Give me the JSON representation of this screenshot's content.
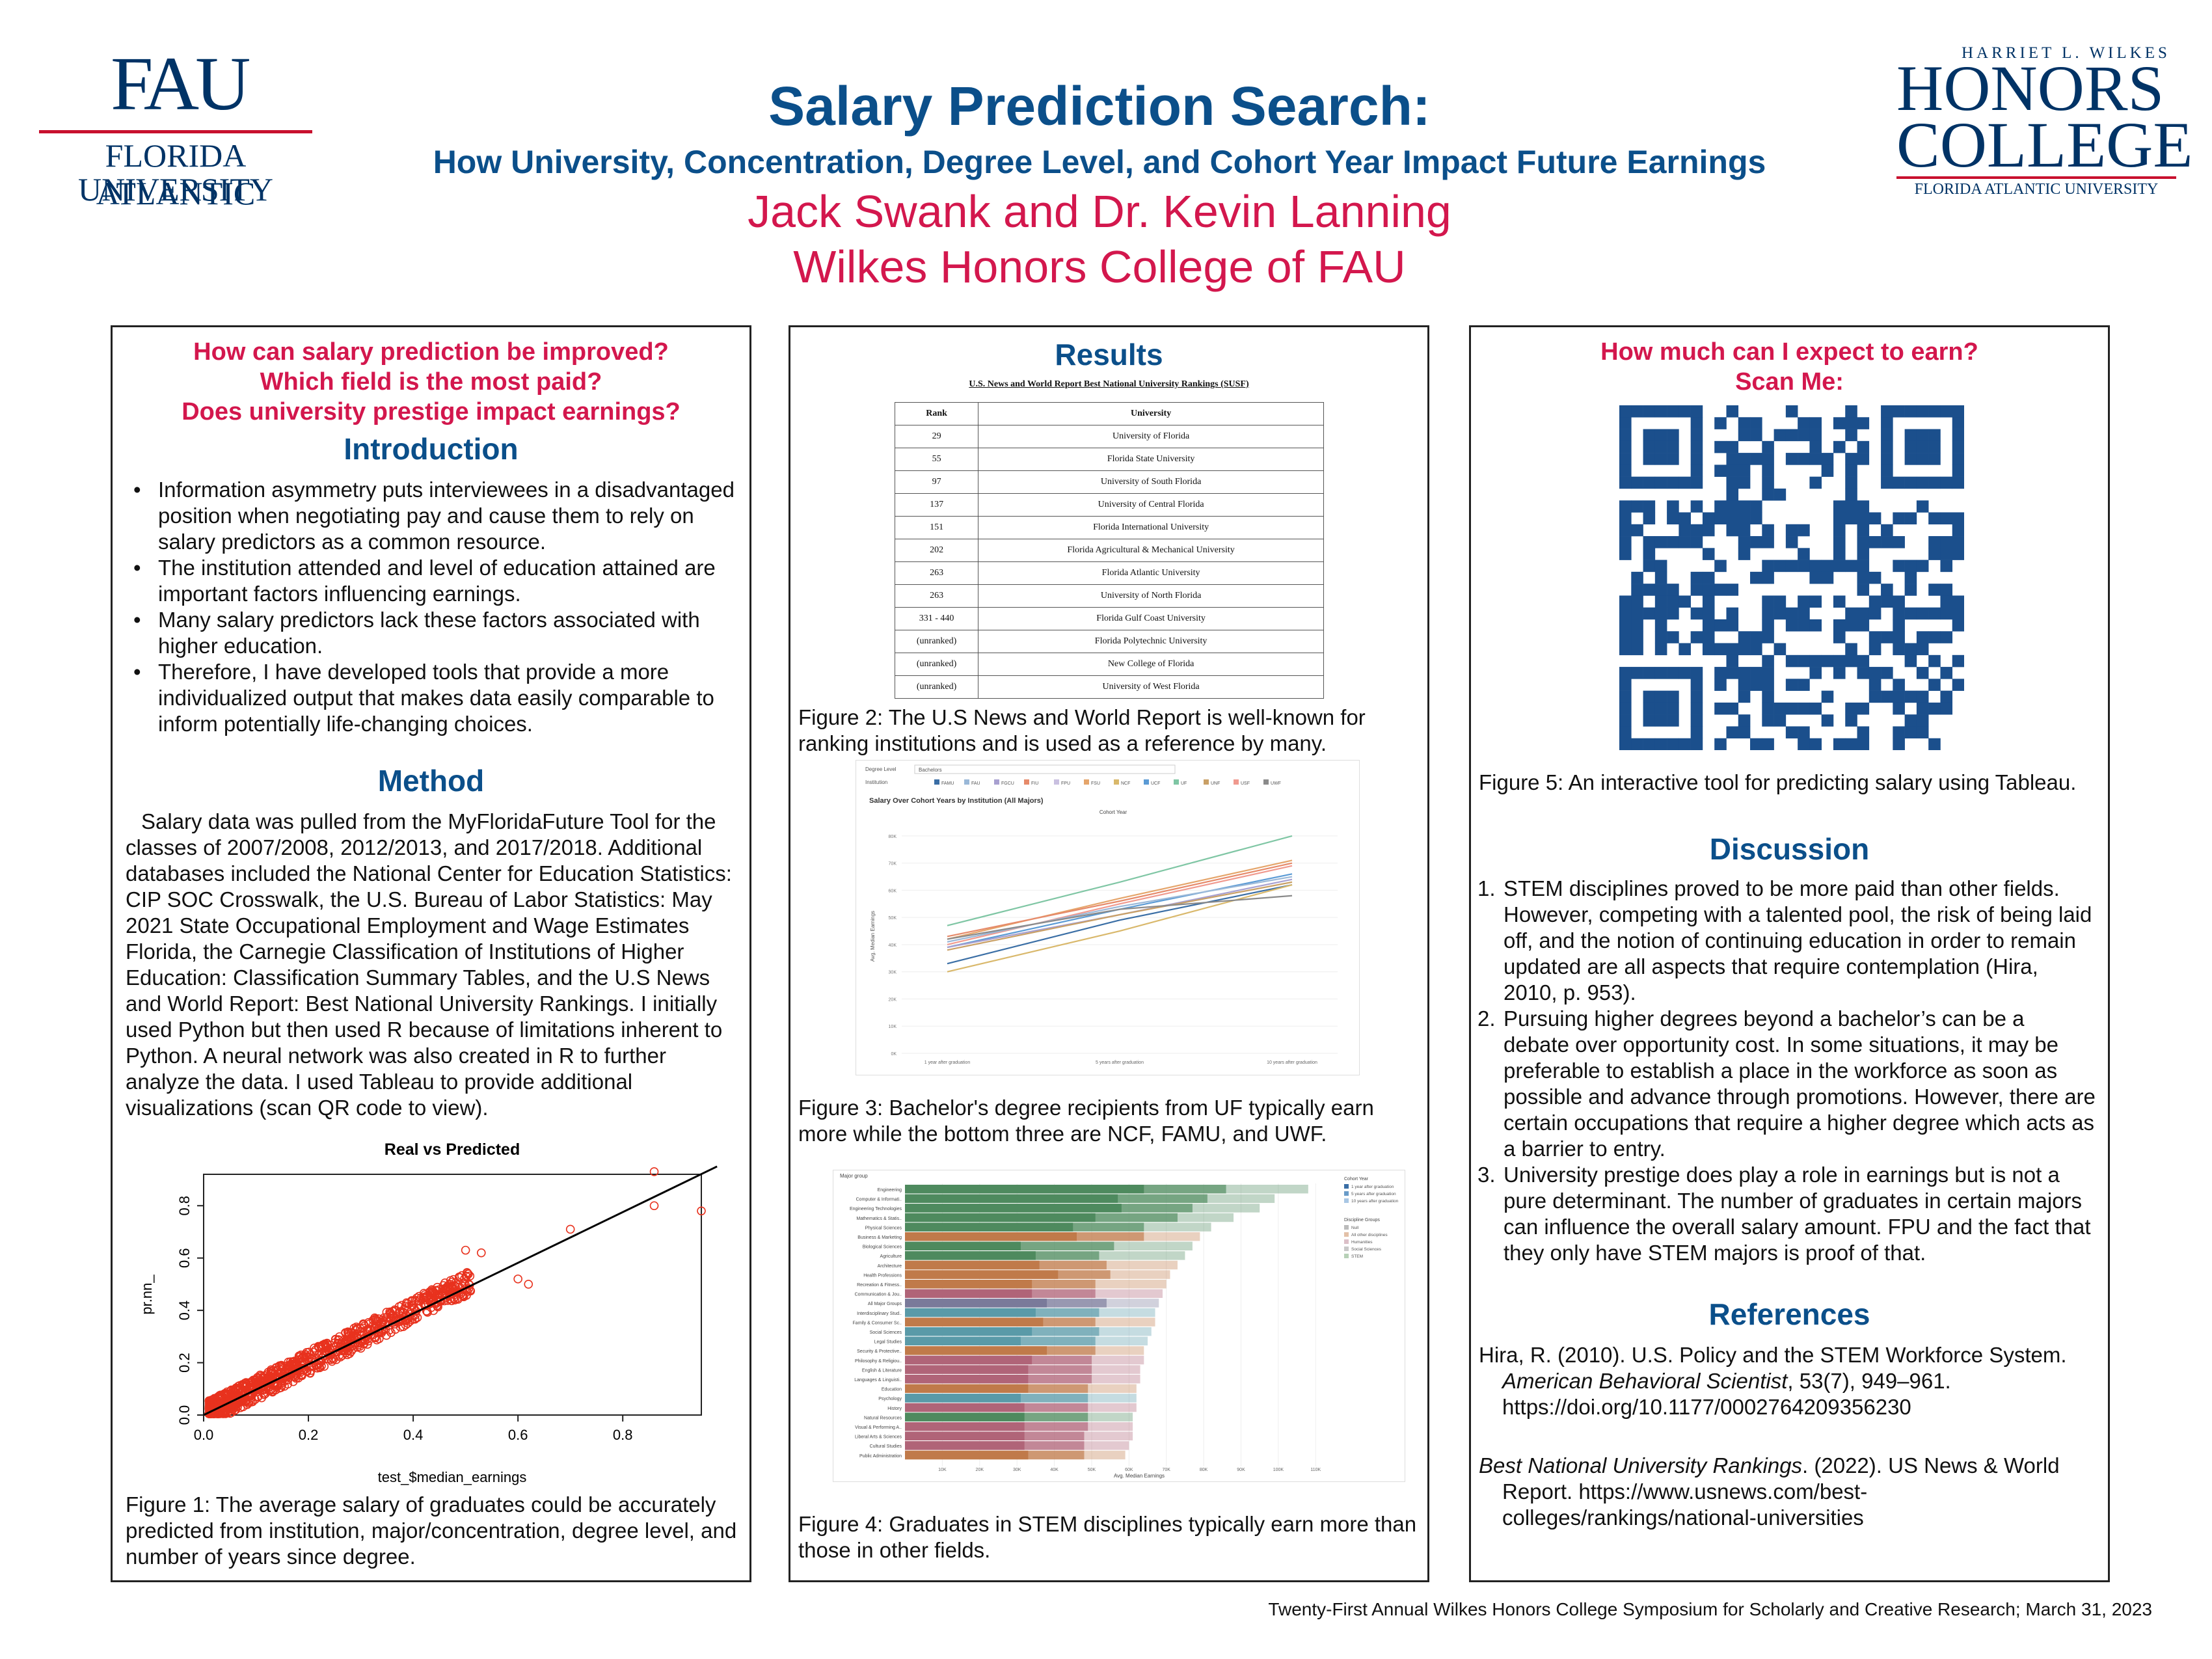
{
  "header": {
    "title": "Salary Prediction Search:",
    "subtitle": "How University, Concentration, Degree Level, and Cohort Year Impact Future Earnings",
    "authors": "Jack Swank and Dr. Kevin Lanning",
    "affiliation": "Wilkes Honors College of FAU"
  },
  "logos": {
    "fau_mark": "FAU",
    "fau_line1": "FLORIDA ATLANTIC",
    "fau_line2": "UNIVERSITY",
    "hc_small": "HARRIET L. WILKES",
    "hc_line1": "HONORS",
    "hc_line2": "COLLEGE",
    "hc_bottom": "FLORIDA ATLANTIC UNIVERSITY"
  },
  "left": {
    "questions": [
      "How can salary prediction be improved?",
      "Which field is the most paid?",
      "Does university prestige impact earnings?"
    ],
    "intro_heading": "Introduction",
    "intro_bullets": [
      "Information asymmetry puts interviewees in a disadvantaged position when negotiating pay and cause them to rely on salary predictors as a common resource.",
      "The institution attended and level of education attained are important factors influencing earnings.",
      "Many salary predictors lack these factors associated with higher education.",
      "Therefore, I have developed tools that provide a more individualized output that makes data easily comparable to inform potentially life-changing choices."
    ],
    "method_heading": "Method",
    "method_text": "Salary data was pulled from the MyFloridaFuture Tool for the classes of 2007/2008, 2012/2013, and 2017/2018. Additional databases included the National Center for Education Statistics: CIP SOC Crosswalk, the U.S. Bureau of Labor Statistics: May 2021 State Occupational Employment and Wage Estimates Florida, the Carnegie Classification of Institutions of Higher Education: Classification Summary Tables, and the U.S News and World Report: Best National University Rankings. I initially used Python but then used R because of limitations inherent to Python. A neural network was also created in R to further analyze the data. I used Tableau to provide additional visualizations (scan QR code to view).",
    "fig1_caption": "Figure 1: The average salary of graduates could be accurately predicted from institution, major/concentration, degree level, and number of years since degree."
  },
  "chart_data": [
    {
      "type": "scatter",
      "title": "Real vs Predicted",
      "xlabel": "test_$median_earnings",
      "ylabel": "pr.nn_",
      "xlim": [
        0.0,
        0.95
      ],
      "ylim": [
        0.0,
        0.92
      ],
      "x_ticks": [
        "0.0",
        "0.2",
        "0.4",
        "0.6",
        "0.8"
      ],
      "y_ticks": [
        "0.0",
        "0.2",
        "0.4",
        "0.6",
        "0.8"
      ],
      "outliers": [
        [
          0.86,
          0.93
        ],
        [
          0.86,
          0.8
        ],
        [
          0.95,
          0.78
        ],
        [
          0.7,
          0.71
        ],
        [
          0.6,
          0.52
        ],
        [
          0.62,
          0.5
        ],
        [
          0.53,
          0.62
        ],
        [
          0.5,
          0.63
        ]
      ],
      "trend_line": {
        "from": [
          0.0,
          0.0
        ],
        "to": [
          0.98,
          0.95
        ]
      }
    },
    {
      "type": "line",
      "title": "Salary Over Cohort Years by Institution (All Majors)",
      "legend_title": "Cohort Year",
      "ylabel": "Avg. Median Earnings",
      "categories": [
        "1 year after graduation",
        "5 years after graduation",
        "10 years after graduation"
      ],
      "y_ticks": [
        "0K",
        "10K",
        "20K",
        "30K",
        "40K",
        "50K",
        "60K",
        "70K",
        "80K"
      ],
      "filters": {
        "degree_label": "Degree Level",
        "degree_value": "Bachelors",
        "institution_label": "Institution"
      },
      "legend": [
        "FAMU",
        "FAU",
        "FGCU",
        "FIU",
        "FPU",
        "FSU",
        "NCF",
        "UCF",
        "UF",
        "UNF",
        "USF",
        "UWF"
      ],
      "series": [
        {
          "name": "UF",
          "color": "#7fc6a4",
          "values": [
            47,
            63,
            80
          ]
        },
        {
          "name": "FSU",
          "color": "#e5a56b",
          "values": [
            42,
            57,
            71
          ]
        },
        {
          "name": "FIU",
          "color": "#e68a6a",
          "values": [
            43,
            56,
            70
          ]
        },
        {
          "name": "USF",
          "color": "#f09a8f",
          "values": [
            40,
            55,
            69
          ]
        },
        {
          "name": "UCF",
          "color": "#5b9bd5",
          "values": [
            39,
            53,
            66
          ]
        },
        {
          "name": "FAU",
          "color": "#9ab8d8",
          "values": [
            41,
            54,
            65
          ]
        },
        {
          "name": "FGCU",
          "color": "#a8a0d0",
          "values": [
            39,
            51,
            64
          ]
        },
        {
          "name": "UNF",
          "color": "#c9a066",
          "values": [
            38,
            51,
            63
          ]
        },
        {
          "name": "FAMU",
          "color": "#3a6ea5",
          "values": [
            33,
            49,
            62
          ]
        },
        {
          "name": "NCF",
          "color": "#d9b86b",
          "values": [
            30,
            45,
            62
          ]
        },
        {
          "name": "UWF",
          "color": "#8a8a8a",
          "values": [
            42,
            53,
            58
          ]
        }
      ]
    },
    {
      "type": "bar",
      "title": "Major group",
      "xlabel": "Avg. Median Earnings",
      "x_ticks": [
        "10K",
        "20K",
        "30K",
        "40K",
        "50K",
        "60K",
        "70K",
        "80K",
        "90K",
        "100K",
        "110K"
      ],
      "legend_cohort_title": "Cohort Year",
      "legend_cohort": [
        "1 year after graduation",
        "5 years after graduation",
        "10 years after graduation"
      ],
      "legend_group_title": "Discipline Groups",
      "legend_groups": [
        "Null",
        "All other disciplines",
        "Humanities",
        "Social Sciences",
        "STEM"
      ],
      "categories": [
        "Engineering",
        "Computer & Informati..",
        "Engineering Technologies",
        "Mathematics & Statis..",
        "Physical Sciences",
        "Business & Marketing",
        "Biological Sciences",
        "Agriculture",
        "Architecture",
        "Health Professions",
        "Recreation & Fitness..",
        "Communication & Jou..",
        "All Major Groups",
        "Interdisciplinary Stud..",
        "Family & Consumer Sc..",
        "Social Sciences",
        "Legal Studies",
        "Security & Protective..",
        "Philosophy & Religiou..",
        "English & Literature",
        "Languages & Linguisti..",
        "Education",
        "Psychology",
        "History",
        "Natural Resources",
        "Visual & Performing A..",
        "Liberal Arts & Sciences",
        "Cultural Studies",
        "Public Administration"
      ],
      "groups": [
        "STEM",
        "STEM",
        "STEM",
        "STEM",
        "STEM",
        "Other",
        "STEM",
        "STEM",
        "Other",
        "Other",
        "Other",
        "Hum",
        "Null",
        "Soc",
        "Other",
        "Soc",
        "Soc",
        "Other",
        "Hum",
        "Hum",
        "Hum",
        "Other",
        "Soc",
        "Hum",
        "STEM",
        "Hum",
        "Hum",
        "Hum",
        "Other"
      ],
      "series": [
        {
          "name": "1 year after graduation",
          "values": [
            64,
            57,
            58,
            51,
            45,
            46,
            31,
            35,
            36,
            41,
            34,
            34,
            38,
            35,
            37,
            34,
            31,
            38,
            34,
            33,
            33,
            33,
            31,
            32,
            32,
            32,
            32,
            32,
            33
          ]
        },
        {
          "name": "5 years after graduation",
          "values": [
            86,
            81,
            77,
            73,
            64,
            64,
            56,
            52,
            54,
            55,
            51,
            51,
            54,
            52,
            51,
            52,
            51,
            51,
            50,
            50,
            50,
            49,
            49,
            49,
            49,
            49,
            48,
            48,
            48
          ]
        },
        {
          "name": "10 years after graduation",
          "values": [
            108,
            99,
            95,
            88,
            82,
            79,
            77,
            75,
            73,
            71,
            70,
            69,
            68,
            67,
            67,
            66,
            65,
            64,
            64,
            63,
            63,
            62,
            62,
            62,
            61,
            61,
            61,
            60,
            59
          ]
        }
      ]
    }
  ],
  "results": {
    "heading": "Results",
    "table_caption": "U.S. News and World Report Best National University Rankings (SUSF)",
    "table_headers": [
      "Rank",
      "University"
    ],
    "table_rows": [
      [
        "29",
        "University of Florida"
      ],
      [
        "55",
        "Florida State University"
      ],
      [
        "97",
        "University of South Florida"
      ],
      [
        "137",
        "University of Central Florida"
      ],
      [
        "151",
        "Florida International University"
      ],
      [
        "202",
        "Florida Agricultural & Mechanical University"
      ],
      [
        "263",
        "Florida Atlantic University"
      ],
      [
        "263",
        "University of North Florida"
      ],
      [
        "331 - 440",
        "Florida Gulf Coast University"
      ],
      [
        "(unranked)",
        "Florida Polytechnic University"
      ],
      [
        "(unranked)",
        "New College of Florida"
      ],
      [
        "(unranked)",
        "University of West Florida"
      ]
    ],
    "fig2_caption": "Figure 2: The U.S News and World Report is well-known for ranking institutions and is used as a reference by many.",
    "fig3_caption": "Figure 3: Bachelor's degree recipients from UF typically earn more while the bottom three are NCF, FAMU, and UWF.",
    "fig4_caption": "Figure 4: Graduates in STEM disciplines typically earn more than those in other fields."
  },
  "right": {
    "question": "How much can I expect to earn?",
    "scan": "Scan Me:",
    "fig5_caption": "Figure 5: An interactive tool for predicting salary using Tableau.",
    "discussion_heading": "Discussion",
    "discussion_items": [
      "STEM disciplines proved to be more paid than other fields. However, competing with a talented pool, the risk of being laid off, and the notion of continuing education in order to remain updated are all aspects that require contemplation (Hira, 2010, p. 953).",
      "Pursuing higher degrees beyond a bachelor’s can be a debate over opportunity cost. In some situations, it may be preferable to establish a place in the workforce as soon as possible and advance through promotions. However, there are certain occupations that require a higher degree which acts as a barrier to entry.",
      "University prestige does play a role in earnings but is not a pure determinant. The number of graduates in certain majors can influence the overall salary amount. FPU and the fact that they only have STEM majors is proof of that."
    ],
    "references_heading": "References",
    "ref1_a": "Hira, R. (2010). U.S. Policy and the STEM Workforce System.",
    "ref1_b": "American Behavioral Scientist",
    "ref1_c": ", 53(7), 949–961.",
    "ref1_d": "https://doi.org/10.1177/0002764209356230",
    "ref2_a": "Best National University Rankings",
    "ref2_b": ". (2022). US News & World",
    "ref2_c": "Report. https://www.usnews.com/best-",
    "ref2_d": "colleges/rankings/national-universities"
  },
  "footer": "Twenty-First Annual Wilkes Honors College Symposium for Scholarly and Creative Research; March 31, 2023",
  "colors": {
    "blue": "#0b4f8a",
    "red": "#d3174d",
    "stem": "#4e8a5e",
    "other": "#c07a4a",
    "hum": "#b06478",
    "soc": "#5a9aa8"
  }
}
